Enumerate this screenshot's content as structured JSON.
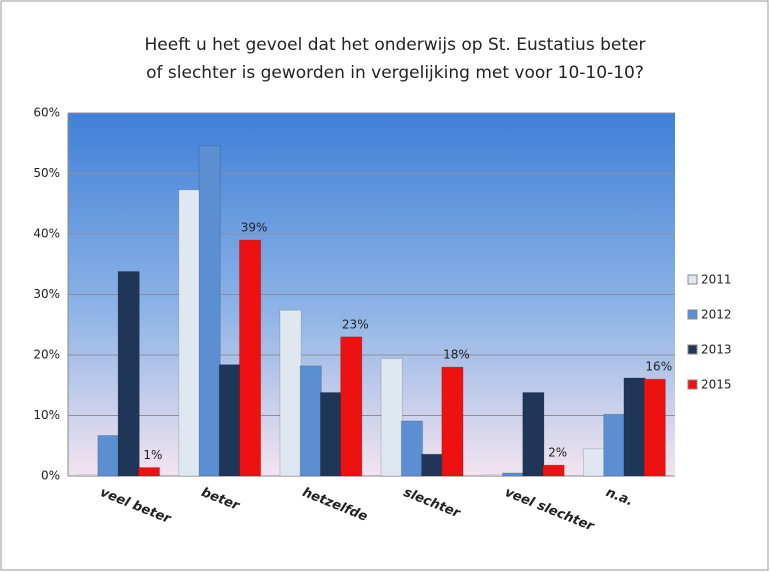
{
  "chart_data": {
    "type": "bar",
    "title": [
      "Heeft u het gevoel dat het onderwijs op St. Eustatius beter",
      "of slechter is geworden in vergelijking met voor 10-10-10?"
    ],
    "categories": [
      "veel beter",
      "beter",
      "hetzelfde",
      "slechter",
      "veel slechter",
      "n.a."
    ],
    "series": [
      {
        "name": "2011",
        "color": "#dfe8f0",
        "values": [
          0.2,
          47.3,
          27.4,
          19.4,
          0.2,
          4.5
        ]
      },
      {
        "name": "2012",
        "color": "#5b8fd2",
        "values": [
          6.7,
          54.6,
          18.2,
          9.1,
          0.5,
          10.2
        ]
      },
      {
        "name": "2013",
        "color": "#1f3658",
        "values": [
          33.8,
          18.4,
          13.8,
          3.6,
          13.8,
          16.2
        ]
      },
      {
        "name": "2015",
        "color": "#ee1111",
        "values": [
          1.4,
          39,
          23,
          18,
          1.8,
          16
        ],
        "value_labels": [
          "1%",
          "39%",
          "23%",
          "18%",
          "2%",
          "16%"
        ]
      }
    ],
    "ylim": [
      0,
      60
    ],
    "yticks": [
      {
        "value": 0,
        "label": "0%"
      },
      {
        "value": 10,
        "label": "10%"
      },
      {
        "value": 20,
        "label": "20%"
      },
      {
        "value": 30,
        "label": "30%"
      },
      {
        "value": 40,
        "label": "40%"
      },
      {
        "value": 50,
        "label": "50%"
      },
      {
        "value": 60,
        "label": "60%"
      }
    ],
    "grid": true,
    "legend": "right"
  }
}
